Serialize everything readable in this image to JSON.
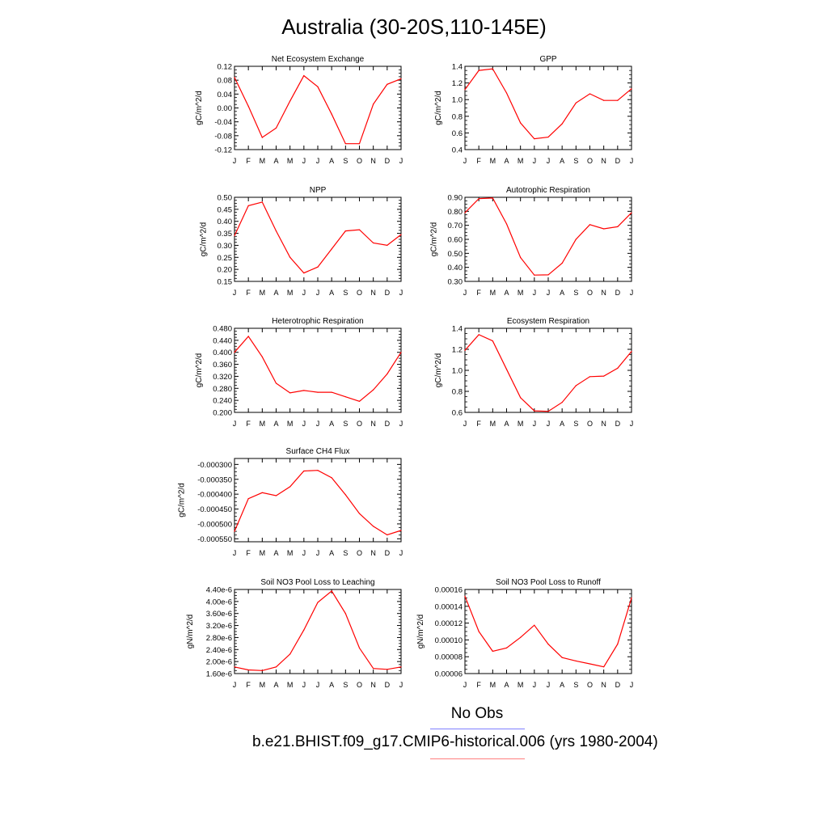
{
  "title": "Australia (30-20S,110-145E)",
  "months": [
    "J",
    "F",
    "M",
    "A",
    "M",
    "J",
    "J",
    "A",
    "S",
    "O",
    "N",
    "D",
    "J"
  ],
  "line_color": "#ff0000",
  "legend": [
    {
      "label": "No Obs",
      "color": "#7f7fff"
    },
    {
      "label": "b.e21.BHIST.f09_g17.CMIP6-historical.006 (yrs 1980-2004)",
      "color": "#ff7f7f"
    }
  ],
  "chart_data": [
    {
      "type": "line",
      "title": "Net Ecosystem Exchange",
      "ylabel": "gC/m^2/d",
      "ylim": [
        -0.12,
        0.12
      ],
      "yticks": [
        "0.12",
        "0.08",
        "0.04",
        "0.00",
        "-0.04",
        "-0.08",
        "-0.12"
      ],
      "yvals": [
        0.12,
        0.08,
        0.04,
        0.0,
        -0.04,
        -0.08,
        -0.12
      ],
      "values": [
        0.088,
        0.005,
        -0.085,
        -0.058,
        0.02,
        0.093,
        0.061,
        -0.018,
        -0.103,
        -0.103,
        0.011,
        0.068,
        0.084
      ]
    },
    {
      "type": "line",
      "title": "GPP",
      "ylabel": "gC/m^2/d",
      "ylim": [
        0.4,
        1.4
      ],
      "yticks": [
        "1.4",
        "1.2",
        "1.0",
        "0.8",
        "0.6",
        "0.4"
      ],
      "yvals": [
        1.4,
        1.2,
        1.0,
        0.8,
        0.6,
        0.4
      ],
      "values": [
        1.12,
        1.35,
        1.37,
        1.08,
        0.72,
        0.53,
        0.55,
        0.71,
        0.96,
        1.07,
        0.99,
        0.99,
        1.13
      ]
    },
    {
      "type": "line",
      "title": "NPP",
      "ylabel": "gC/m^2/d",
      "ylim": [
        0.15,
        0.5
      ],
      "yticks": [
        "0.50",
        "0.45",
        "0.40",
        "0.35",
        "0.30",
        "0.25",
        "0.20",
        "0.15"
      ],
      "yvals": [
        0.5,
        0.45,
        0.4,
        0.35,
        0.3,
        0.25,
        0.2,
        0.15
      ],
      "values": [
        0.34,
        0.465,
        0.48,
        0.36,
        0.25,
        0.185,
        0.21,
        0.285,
        0.36,
        0.365,
        0.31,
        0.3,
        0.345
      ]
    },
    {
      "type": "line",
      "title": "Autotrophic Respiration",
      "ylabel": "gC/m^2/d",
      "ylim": [
        0.3,
        0.9
      ],
      "yticks": [
        "0.90",
        "0.80",
        "0.70",
        "0.60",
        "0.50",
        "0.40",
        "0.30"
      ],
      "yvals": [
        0.9,
        0.8,
        0.7,
        0.6,
        0.5,
        0.4,
        0.3
      ],
      "values": [
        0.79,
        0.89,
        0.895,
        0.71,
        0.47,
        0.345,
        0.347,
        0.43,
        0.6,
        0.705,
        0.675,
        0.69,
        0.79
      ]
    },
    {
      "type": "line",
      "title": "Heterotrophic Respiration",
      "ylabel": "gC/m^2/d",
      "ylim": [
        0.2,
        0.48
      ],
      "yticks": [
        "0.480",
        "0.440",
        "0.400",
        "0.360",
        "0.320",
        "0.280",
        "0.240",
        "0.200"
      ],
      "yvals": [
        0.48,
        0.44,
        0.4,
        0.36,
        0.32,
        0.28,
        0.24,
        0.2
      ],
      "values": [
        0.4,
        0.453,
        0.385,
        0.297,
        0.265,
        0.273,
        0.267,
        0.267,
        0.252,
        0.237,
        0.275,
        0.328,
        0.4
      ]
    },
    {
      "type": "line",
      "title": "Ecosystem Respiration",
      "ylabel": "gC/m^2/d",
      "ylim": [
        0.6,
        1.4
      ],
      "yticks": [
        "1.4",
        "1.2",
        "1.0",
        "0.8",
        "0.6"
      ],
      "yvals": [
        1.4,
        1.2,
        1.0,
        0.8,
        0.6
      ],
      "values": [
        1.19,
        1.34,
        1.28,
        1.01,
        0.74,
        0.615,
        0.61,
        0.695,
        0.855,
        0.94,
        0.945,
        1.02,
        1.18
      ]
    },
    {
      "type": "line",
      "title": "Surface CH4 Flux",
      "ylabel": "gC/m^2/d",
      "ylim": [
        -0.00056,
        -0.00028
      ],
      "yticks": [
        "-0.000300",
        "-0.000350",
        "-0.000400",
        "-0.000450",
        "-0.000500",
        "-0.000550"
      ],
      "yvals": [
        -0.0003,
        -0.00035,
        -0.0004,
        -0.00045,
        -0.0005,
        -0.00055
      ],
      "values": [
        -0.000525,
        -0.000415,
        -0.000395,
        -0.000405,
        -0.000375,
        -0.000322,
        -0.00032,
        -0.000345,
        -0.000402,
        -0.000465,
        -0.000508,
        -0.000537,
        -0.000522
      ]
    },
    {
      "type": "line",
      "title": "Soil NO3 Pool Loss to Leaching",
      "ylabel": "gN/m^2/d",
      "ylim": [
        1.6e-06,
        4.4e-06
      ],
      "yticks": [
        "4.40e-6",
        "4.00e-6",
        "3.60e-6",
        "3.20e-6",
        "2.80e-6",
        "2.40e-6",
        "2.00e-6",
        "1.60e-6"
      ],
      "yvals": [
        4.4e-06,
        4e-06,
        3.6e-06,
        3.2e-06,
        2.8e-06,
        2.4e-06,
        2e-06,
        1.6e-06
      ],
      "values": [
        1.82e-06,
        1.72e-06,
        1.7e-06,
        1.82e-06,
        2.25e-06,
        3.05e-06,
        3.97e-06,
        4.35e-06,
        3.6e-06,
        2.45e-06,
        1.77e-06,
        1.74e-06,
        1.82e-06
      ]
    },
    {
      "type": "line",
      "title": "Soil NO3 Pool Loss to Runoff",
      "ylabel": "gN/m^2/d",
      "ylim": [
        6e-05,
        0.00016
      ],
      "yticks": [
        "0.00016",
        "0.00014",
        "0.00012",
        "0.00010",
        "0.00008",
        "0.00006"
      ],
      "yvals": [
        0.00016,
        0.00014,
        0.00012,
        0.0001,
        8e-05,
        6e-05
      ],
      "values": [
        0.000152,
        0.00011,
        8.65e-05,
        9.05e-05,
        0.000103,
        0.0001175,
        9.5e-05,
        7.9e-05,
        7.5e-05,
        7.15e-05,
        6.8e-05,
        9.5e-05,
        0.00015
      ]
    }
  ]
}
